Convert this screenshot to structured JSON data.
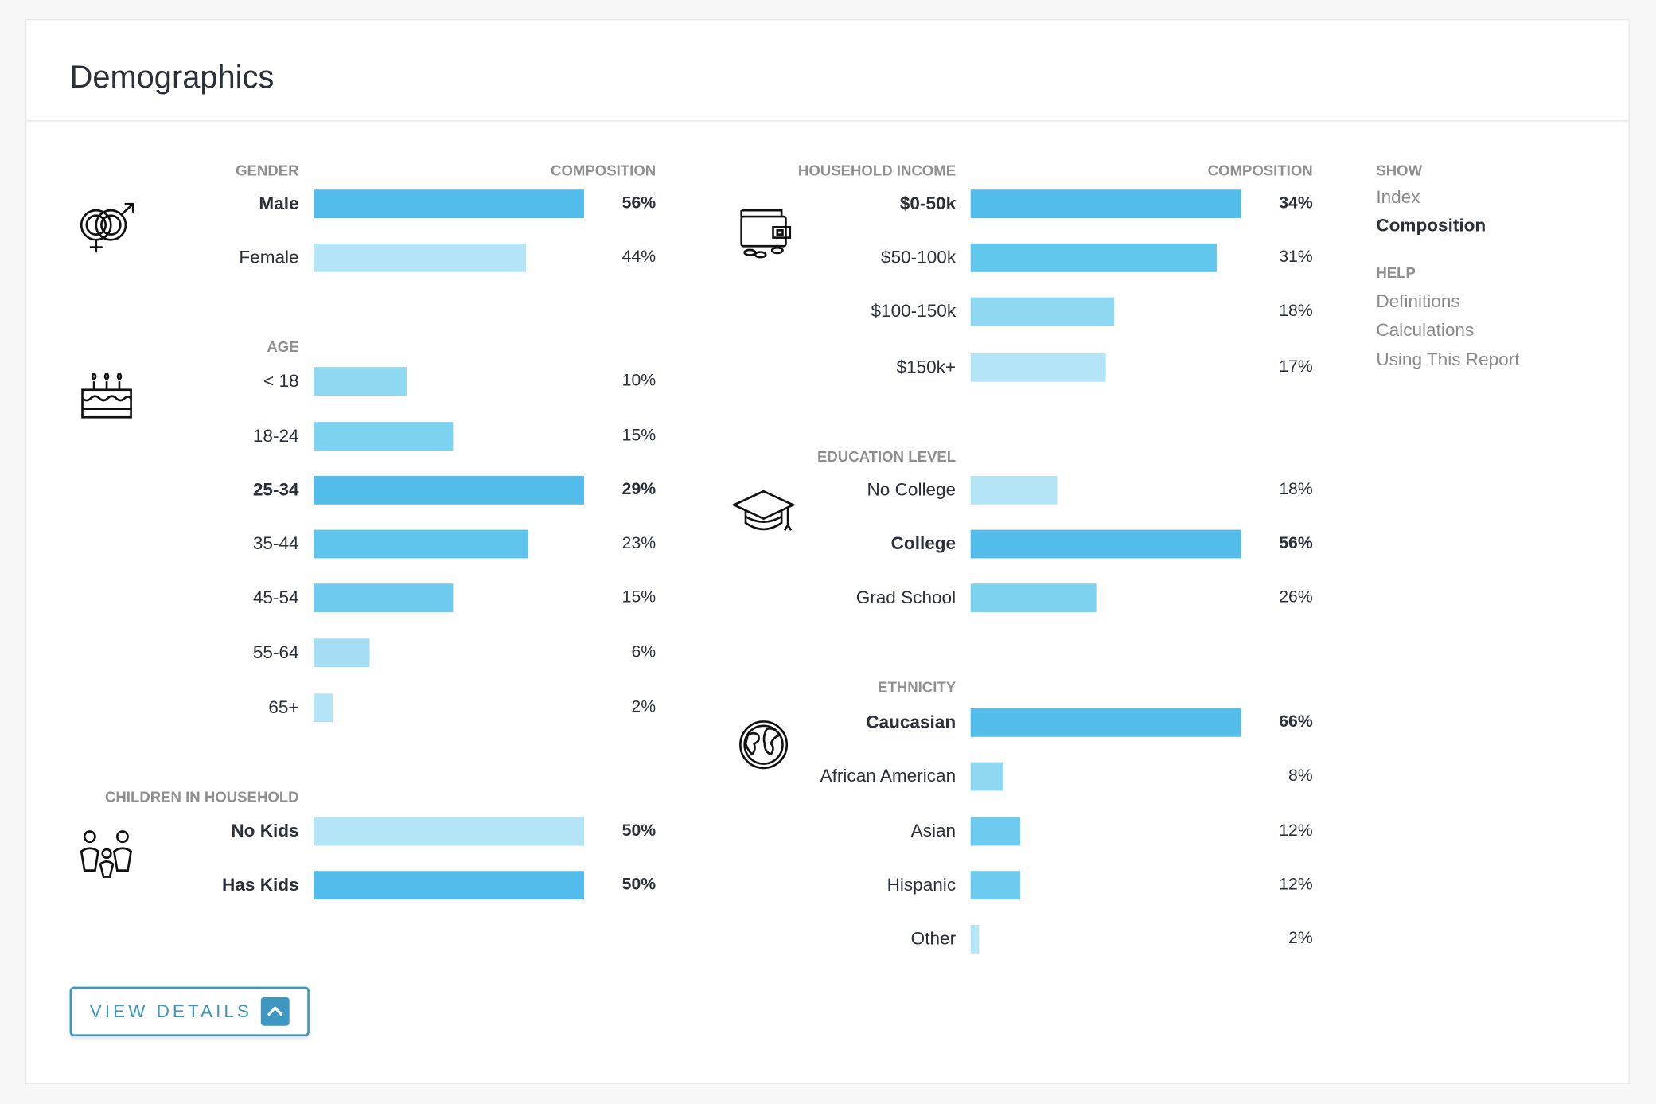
{
  "title": "Demographics",
  "composition_header": "COMPOSITION",
  "colors": {
    "accent": "#3d97c0",
    "bar_max": "#52bdea"
  },
  "left_sections": [
    {
      "id": "gender",
      "header": "GENDER",
      "icon": "gender-icon",
      "max": 56,
      "rows": [
        {
          "label": "Male",
          "value": 56,
          "pct": "56%",
          "bold": true,
          "color": "#52bdea"
        },
        {
          "label": "Female",
          "value": 44,
          "pct": "44%",
          "bold": false,
          "color": "#b3e5f7"
        }
      ]
    },
    {
      "id": "age",
      "header": "AGE",
      "icon": "birthday-cake-icon",
      "max": 29,
      "rows": [
        {
          "label": "< 18",
          "value": 10,
          "pct": "10%",
          "bold": false,
          "color": "#8ed8f2"
        },
        {
          "label": "18-24",
          "value": 15,
          "pct": "15%",
          "bold": false,
          "color": "#7dd2f0"
        },
        {
          "label": "25-34",
          "value": 29,
          "pct": "29%",
          "bold": true,
          "color": "#52bdea"
        },
        {
          "label": "35-44",
          "value": 23,
          "pct": "23%",
          "bold": false,
          "color": "#5fc4ec"
        },
        {
          "label": "45-54",
          "value": 15,
          "pct": "15%",
          "bold": false,
          "color": "#6dcbef"
        },
        {
          "label": "55-64",
          "value": 6,
          "pct": "6%",
          "bold": false,
          "color": "#a3def5"
        },
        {
          "label": "65+",
          "value": 2,
          "pct": "2%",
          "bold": false,
          "color": "#b3e5f7"
        }
      ]
    },
    {
      "id": "children",
      "header": "CHILDREN IN HOUSEHOLD",
      "icon": "family-icon",
      "max": 50,
      "rows": [
        {
          "label": "No Kids",
          "value": 50,
          "pct": "50%",
          "bold": true,
          "color": "#b3e5f7"
        },
        {
          "label": "Has Kids",
          "value": 50,
          "pct": "50%",
          "bold": true,
          "color": "#52bdea"
        }
      ]
    }
  ],
  "right_sections": [
    {
      "id": "income",
      "header": "HOUSEHOLD INCOME",
      "icon": "wallet-icon",
      "max": 34,
      "rows": [
        {
          "label": "$0-50k",
          "value": 34,
          "pct": "34%",
          "bold": true,
          "color": "#52bdea"
        },
        {
          "label": "$50-100k",
          "value": 31,
          "pct": "31%",
          "bold": false,
          "color": "#62c7ed"
        },
        {
          "label": "$100-150k",
          "value": 18,
          "pct": "18%",
          "bold": false,
          "color": "#8ed8f2"
        },
        {
          "label": "$150k+",
          "value": 17,
          "pct": "17%",
          "bold": false,
          "color": "#b3e5f7"
        }
      ]
    },
    {
      "id": "education",
      "header": "EDUCATION LEVEL",
      "icon": "graduation-cap-icon",
      "max": 56,
      "rows": [
        {
          "label": "No College",
          "value": 18,
          "pct": "18%",
          "bold": false,
          "color": "#b3e5f7"
        },
        {
          "label": "College",
          "value": 56,
          "pct": "56%",
          "bold": true,
          "color": "#52bdea"
        },
        {
          "label": "Grad School",
          "value": 26,
          "pct": "26%",
          "bold": false,
          "color": "#7dd2f0"
        }
      ]
    },
    {
      "id": "ethnicity",
      "header": "ETHNICITY",
      "icon": "globe-icon",
      "max": 66,
      "rows": [
        {
          "label": "Caucasian",
          "value": 66,
          "pct": "66%",
          "bold": true,
          "color": "#52bdea"
        },
        {
          "label": "African American",
          "value": 8,
          "pct": "8%",
          "bold": false,
          "color": "#8ed8f2"
        },
        {
          "label": "Asian",
          "value": 12,
          "pct": "12%",
          "bold": false,
          "color": "#6dcbef"
        },
        {
          "label": "Hispanic",
          "value": 12,
          "pct": "12%",
          "bold": false,
          "color": "#6dcbef"
        },
        {
          "label": "Other",
          "value": 2,
          "pct": "2%",
          "bold": false,
          "color": "#b3e5f7"
        }
      ]
    }
  ],
  "sidebar": {
    "show_header": "SHOW",
    "show_items": [
      {
        "label": "Index",
        "active": false
      },
      {
        "label": "Composition",
        "active": true
      }
    ],
    "help_header": "HELP",
    "help_items": [
      {
        "label": "Definitions"
      },
      {
        "label": "Calculations"
      },
      {
        "label": "Using This Report"
      }
    ]
  },
  "button": {
    "label": "VIEW DETAILS",
    "icon": "chevron-up-icon"
  }
}
